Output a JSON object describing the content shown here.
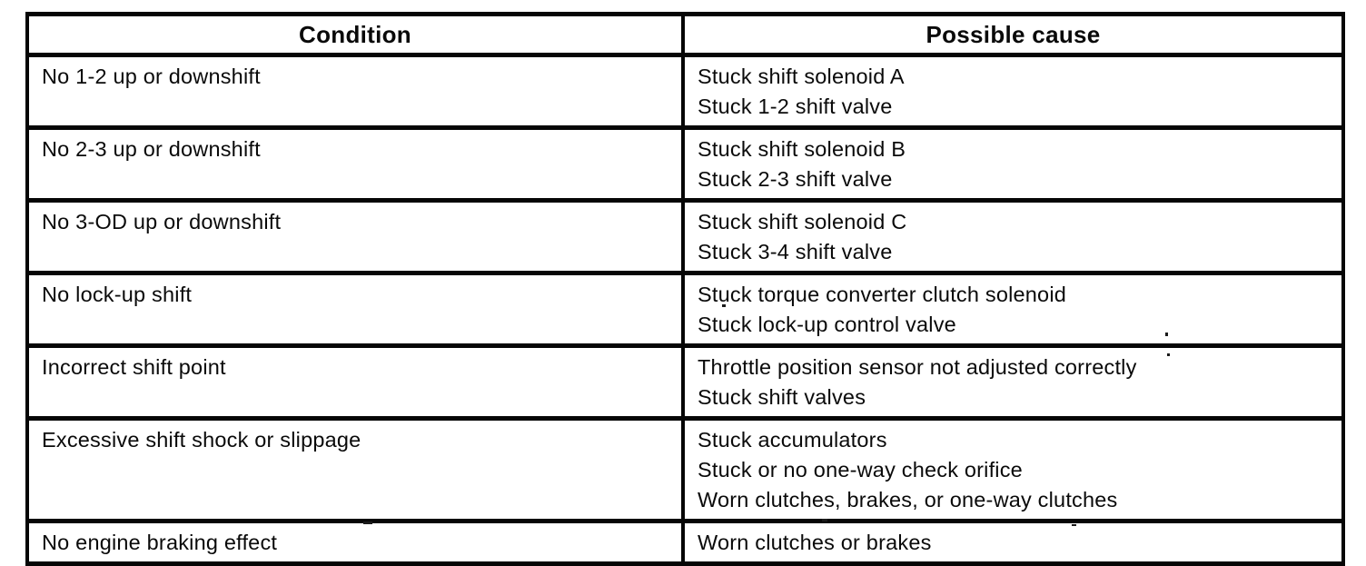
{
  "document": {
    "type": "scanned-troubleshooting-table",
    "colors": {
      "ink": "#060606",
      "paper": "#ffffff"
    }
  },
  "table": {
    "columns": [
      "Condition",
      "Possible cause"
    ],
    "rows": [
      {
        "condition": "No 1-2 up or downshift",
        "causes": [
          "Stuck shift solenoid A",
          "Stuck 1-2 shift valve"
        ]
      },
      {
        "condition": "No 2-3 up or downshift",
        "causes": [
          "Stuck shift solenoid B",
          "Stuck 2-3 shift valve"
        ]
      },
      {
        "condition": "No 3-OD up or downshift",
        "causes": [
          "Stuck shift solenoid C",
          "Stuck 3-4 shift valve"
        ]
      },
      {
        "condition": "No lock-up shift",
        "causes": [
          "Stuck torque converter clutch solenoid",
          "Stuck lock-up control valve"
        ]
      },
      {
        "condition": "Incorrect shift point",
        "causes": [
          "Throttle position sensor not adjusted correctly",
          "Stuck shift valves"
        ]
      },
      {
        "condition": "Excessive shift shock or slippage",
        "causes": [
          "Stuck accumulators",
          "Stuck or no one-way check orifice",
          "Worn clutches, brakes, or one-way clutches"
        ]
      },
      {
        "condition": "No engine braking effect",
        "causes": [
          "Worn clutches or brakes"
        ]
      }
    ]
  }
}
